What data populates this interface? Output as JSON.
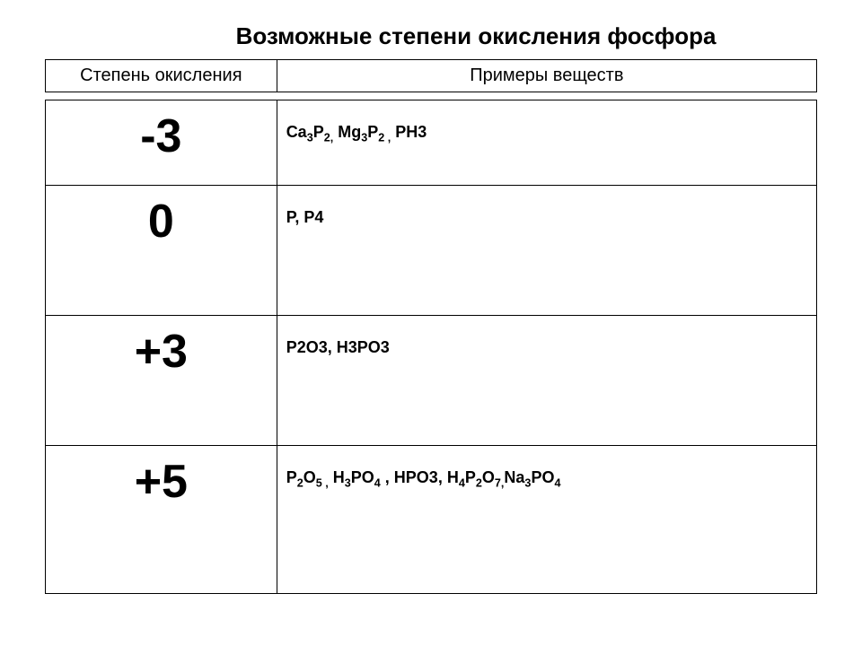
{
  "title": "Возможные степени окисления фосфора",
  "headers": {
    "col1": "Степень окисления",
    "col2": "Примеры веществ"
  },
  "rows": [
    {
      "oxidation": "-3",
      "examples_html": "Ca<sub>3</sub>P<sub>2,</sub>  Mg<sub>3</sub>P<sub>2 ,</sub> PH3"
    },
    {
      "oxidation": "0",
      "examples_html": "P,  P4"
    },
    {
      "oxidation": "+3",
      "examples_html": "P2O3,   H3PO3"
    },
    {
      "oxidation": "+5",
      "examples_html": "P<sub>2</sub>O<sub>5 ,</sub>  H<sub>3</sub>PO<sub>4</sub>   ,   HPO3,   H<sub>4</sub>P<sub>2</sub>O<sub>7,</sub>Na<sub>3</sub>PO<sub>4</sub>"
    }
  ],
  "colors": {
    "background": "#ffffff",
    "text": "#000000",
    "border": "#000000"
  },
  "fonts": {
    "title_size": 26,
    "title_weight": "bold",
    "header_size": 20,
    "oxidation_size": 52,
    "oxidation_weight": "bold",
    "examples_size": 18,
    "examples_weight": "bold"
  }
}
